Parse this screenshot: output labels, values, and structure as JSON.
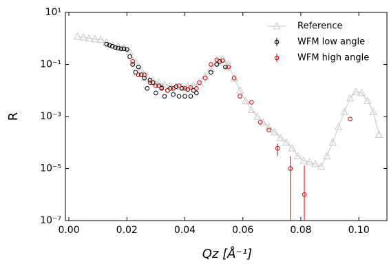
{
  "chart_data": {
    "type": "scatter",
    "x_label": "Qz [Å⁻¹]",
    "y_label": "R",
    "log_y": true,
    "legend": "upper right",
    "xlim": [
      -0.0012,
      0.1097
    ],
    "xticks": [
      {
        "value": 0,
        "label": "0.00"
      },
      {
        "value": 0.02,
        "label": "0.02"
      },
      {
        "value": 0.04,
        "label": "0.04"
      },
      {
        "value": 0.06,
        "label": "0.06"
      },
      {
        "value": 0.08,
        "label": "0.08"
      },
      {
        "value": 0.1,
        "label": "0.10"
      }
    ],
    "ylim": [
      1e-07,
      10
    ],
    "yticks": [
      {
        "value": 1e-07,
        "label": "10⁻⁷"
      },
      {
        "value": 1e-05,
        "label": "10⁻⁵"
      },
      {
        "value": 0.001,
        "label": "10⁻³"
      },
      {
        "value": 0.1,
        "label": "10⁻¹"
      },
      {
        "value": 10,
        "label": "10¹"
      }
    ],
    "series": [
      {
        "name": "Reference",
        "color": "#c8c8c8",
        "marker": "triangle",
        "line": true,
        "x": [
          0.003,
          0.005,
          0.007,
          0.009,
          0.011,
          0.013,
          0.015,
          0.017,
          0.019,
          0.021,
          0.023,
          0.025,
          0.027,
          0.029,
          0.031,
          0.033,
          0.035,
          0.037,
          0.039,
          0.041,
          0.043,
          0.045,
          0.047,
          0.049,
          0.051,
          0.053,
          0.055,
          0.057,
          0.059,
          0.061,
          0.063,
          0.065,
          0.067,
          0.069,
          0.071,
          0.073,
          0.075,
          0.077,
          0.079,
          0.081,
          0.083,
          0.085,
          0.087,
          0.089,
          0.091,
          0.093,
          0.095,
          0.097,
          0.099,
          0.101,
          0.103,
          0.105,
          0.107
        ],
        "values": [
          1.2,
          1.1,
          1.0,
          0.95,
          0.9,
          0.7,
          0.55,
          0.5,
          0.45,
          0.3,
          0.12,
          0.06,
          0.035,
          0.025,
          0.02,
          0.017,
          0.015,
          0.014,
          0.014,
          0.015,
          0.016,
          0.02,
          0.035,
          0.07,
          0.12,
          0.16,
          0.1,
          0.03,
          0.01,
          0.004,
          0.0018,
          0.001,
          0.0006,
          0.0004,
          0.00025,
          0.00015,
          0.0001,
          6e-05,
          3e-05,
          2e-05,
          1.8e-05,
          1.5e-05,
          1.2e-05,
          3e-05,
          0.0001,
          0.0004,
          0.0015,
          0.005,
          0.009,
          0.008,
          0.004,
          0.0015,
          0.0002
        ]
      },
      {
        "name": "WFM low angle",
        "color": "#000000",
        "marker": "circle",
        "line": false,
        "x": [
          0.013,
          0.014,
          0.015,
          0.016,
          0.017,
          0.018,
          0.019,
          0.02,
          0.021,
          0.022,
          0.023,
          0.024,
          0.025,
          0.026,
          0.027,
          0.028,
          0.029,
          0.03,
          0.031,
          0.032,
          0.033,
          0.034,
          0.035,
          0.036,
          0.037,
          0.038,
          0.039,
          0.04,
          0.041,
          0.042,
          0.043,
          0.044,
          0.049,
          0.051,
          0.052,
          0.054
        ],
        "values": [
          0.6,
          0.55,
          0.5,
          0.45,
          0.42,
          0.4,
          0.4,
          0.38,
          0.2,
          0.1,
          0.05,
          0.08,
          0.04,
          0.03,
          0.012,
          0.025,
          0.02,
          0.008,
          0.015,
          0.012,
          0.006,
          0.01,
          0.012,
          0.007,
          0.014,
          0.006,
          0.012,
          0.006,
          0.011,
          0.006,
          0.01,
          0.008,
          0.05,
          0.1,
          0.13,
          0.08
        ]
      },
      {
        "name": "WFM high angle",
        "color": "#e00000",
        "marker": "circle",
        "line": false,
        "x": [
          0.022,
          0.024,
          0.026,
          0.028,
          0.03,
          0.032,
          0.034,
          0.036,
          0.038,
          0.04,
          0.042,
          0.044,
          0.045,
          0.047,
          0.049,
          0.051,
          0.053,
          0.055,
          0.057,
          0.059,
          0.063,
          0.066,
          0.069,
          0.072,
          0.0764,
          0.0812,
          0.097
        ],
        "values": [
          0.13,
          0.04,
          0.04,
          0.02,
          0.015,
          0.013,
          0.01,
          0.012,
          0.015,
          0.012,
          0.013,
          0.012,
          0.02,
          0.03,
          0.1,
          0.15,
          0.14,
          0.08,
          0.03,
          0.006,
          0.0035,
          0.0006,
          0.0003,
          6e-05,
          1e-05,
          1e-06,
          0.0008
        ],
        "errors": [
          null,
          null,
          null,
          null,
          null,
          null,
          null,
          null,
          null,
          null,
          null,
          null,
          null,
          null,
          null,
          null,
          null,
          null,
          null,
          null,
          null,
          null,
          null,
          3e-05,
          2e-05,
          1.2e-05,
          null
        ]
      }
    ]
  }
}
